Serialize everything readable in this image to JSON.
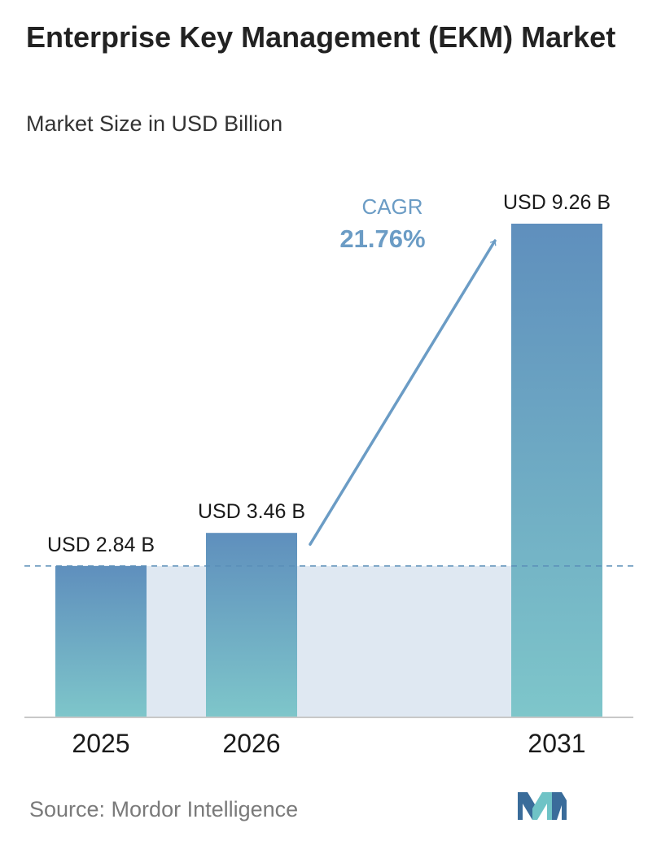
{
  "title": "Enterprise Key Management (EKM) Market",
  "subtitle": "Market Size in USD Billion",
  "source": "Source:  Mordor Intelligence",
  "cagr": {
    "label": "CAGR",
    "value": "21.76%"
  },
  "colors": {
    "bar_top": "#5f8fbd",
    "bar_bottom": "#7ec6ca",
    "band": "#dfe8f2",
    "cagr": "#6b9cc5",
    "dashed_line": "#5a8fb8",
    "axis": "#c8c8c8",
    "logo_dark": "#3a6c9a",
    "logo_light": "#6fc3c6"
  },
  "chart_data": {
    "type": "bar",
    "categories": [
      "2025",
      "2026",
      "2031"
    ],
    "values": [
      2.84,
      3.46,
      9.26
    ],
    "value_labels": [
      "USD 2.84 B",
      "USD 3.46 B",
      "USD 9.26 B"
    ],
    "ylim": [
      0,
      9.26
    ],
    "grid": false,
    "reference_line": 2.84
  }
}
